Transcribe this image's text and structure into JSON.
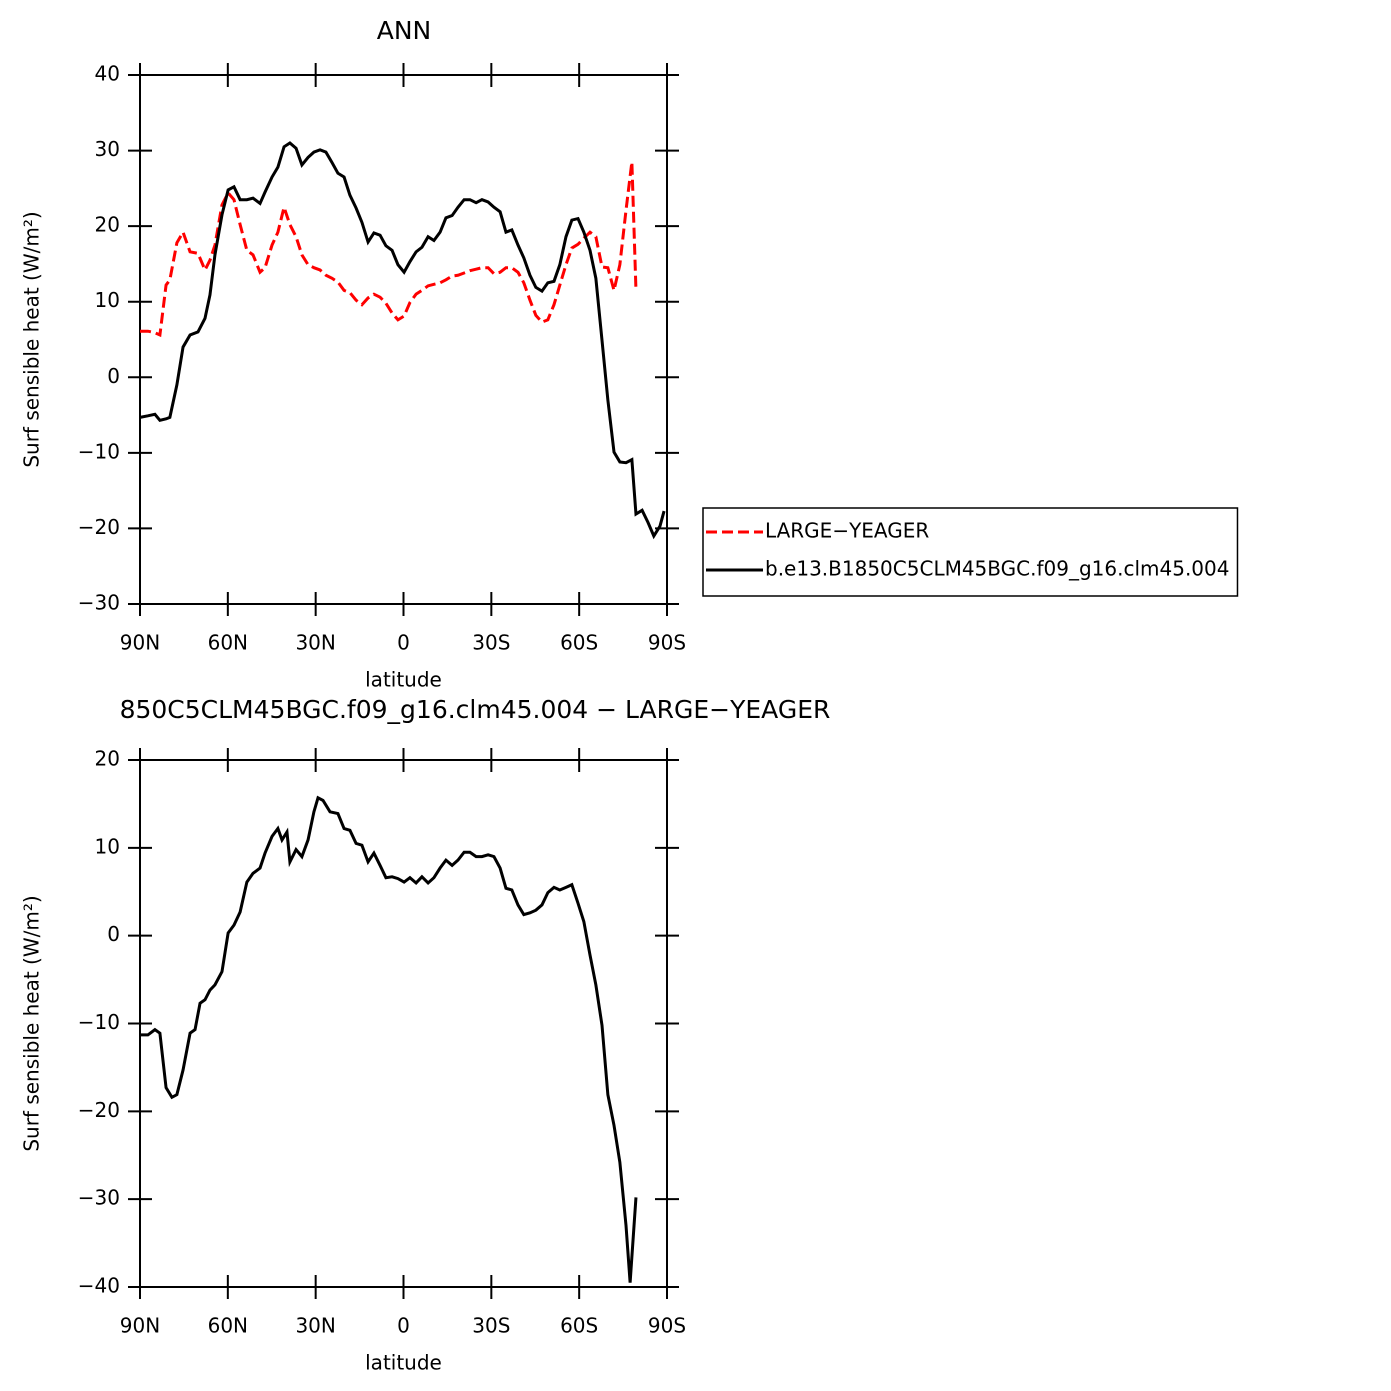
{
  "chart_data": [
    {
      "type": "line",
      "title": "ANN",
      "xlabel": "latitude",
      "ylabel": "Surf sensible heat (W/m²)",
      "x": [
        90,
        87.3,
        84.9,
        83.2,
        81.1,
        79.8,
        77.4,
        75.3,
        72.9,
        70.2,
        67.8,
        66.1,
        64.4,
        62,
        59.9,
        57.9,
        55.8,
        53.5,
        51.4,
        49,
        47.3,
        44.9,
        42.9,
        40.8,
        38.8,
        36.7,
        34.7,
        32.6,
        30.6,
        28.5,
        26.5,
        24.4,
        22.4,
        20.3,
        18.3,
        16.2,
        14.2,
        12.1,
        10.1,
        8,
        6,
        3.9,
        1.9,
        -0.2,
        -2.2,
        -4.3,
        -6.3,
        -8.4,
        -10.4,
        -12.5,
        -14.5,
        -16.6,
        -18.6,
        -20.7,
        -22.7,
        -24.8,
        -26.8,
        -28.9,
        -30.9,
        -33,
        -35,
        -37,
        -39.1,
        -41.1,
        -43.2,
        -45.2,
        -47.3,
        -49.3,
        -51.4,
        -53.4,
        -55.5,
        -57.5,
        -59.6,
        -61.6,
        -63.7,
        -65.7,
        -67.8,
        -69.8,
        -71.9,
        -73.9,
        -76,
        -78,
        -79.4,
        -81.5,
        -83.5,
        -85.5,
        -87.6,
        -89
      ],
      "series": [
        {
          "name": "LARGE−YEAGER",
          "color": "#ff0000",
          "line_style": "dashed",
          "values": [
            6.1,
            6.1,
            5.9,
            5.6,
            12.2,
            12.9,
            17.8,
            19.2,
            16.6,
            16.4,
            14.2,
            15.5,
            17.5,
            22.8,
            24.4,
            23.5,
            20.2,
            16.8,
            16.2,
            13.9,
            14.5,
            17.5,
            19.2,
            22.5,
            20.2,
            18.6,
            16.2,
            14.9,
            14.5,
            14.2,
            13.5,
            13.1,
            12.6,
            11.5,
            11.2,
            10.2,
            9.6,
            10.5,
            11,
            10.6,
            9.8,
            8.5,
            7.6,
            8.1,
            9.9,
            11,
            11.5,
            12.1,
            12.3,
            12.5,
            12.9,
            13.4,
            13.5,
            13.8,
            14.1,
            14.3,
            14.5,
            14.5,
            13.7,
            13.9,
            14.5,
            14.5,
            13.9,
            12.5,
            10.2,
            8.2,
            7.3,
            7.6,
            9.6,
            12.2,
            14.9,
            17.1,
            17.6,
            18.4,
            19.2,
            18.6,
            14.6,
            14.5,
            11.5,
            14.9,
            22.1,
            28.5,
            11.5,
            null,
            null,
            null,
            null,
            null
          ]
        },
        {
          "name": "b.e13.B1850C5CLM45BGC.f09_g16.clm45.004",
          "color": "#000000",
          "line_style": "solid",
          "values": [
            -5.3,
            -5.1,
            -4.9,
            -5.7,
            -5.5,
            -5.3,
            -1,
            4,
            5.6,
            6,
            7.8,
            10.9,
            16.2,
            21.5,
            24.8,
            25.2,
            23.5,
            23.5,
            23.7,
            23,
            24.5,
            26.5,
            27.8,
            30.5,
            31,
            30.3,
            28.1,
            29.1,
            29.8,
            30.1,
            29.8,
            28.4,
            27,
            26.5,
            24.1,
            22.4,
            20.5,
            17.9,
            19.1,
            18.8,
            17.4,
            16.8,
            14.9,
            13.9,
            15.3,
            16.6,
            17.2,
            18.6,
            18.1,
            19.2,
            21.1,
            21.4,
            22.5,
            23.5,
            23.5,
            23.1,
            23.5,
            23.2,
            22.5,
            21.9,
            19.2,
            19.5,
            17.5,
            15.8,
            13.5,
            11.9,
            11.4,
            12.5,
            12.7,
            14.9,
            18.6,
            20.8,
            21,
            19.2,
            16.8,
            13.1,
            4.9,
            -3,
            -9.9,
            -11.2,
            -11.3,
            -10.9,
            -18.1,
            -17.6,
            -19.2,
            -21,
            -19.7,
            -17.7
          ]
        }
      ],
      "xlim": [
        90,
        -90
      ],
      "xticks": [
        {
          "value": 90,
          "label": "90N"
        },
        {
          "value": 60,
          "label": "60N"
        },
        {
          "value": 30,
          "label": "30N"
        },
        0,
        {
          "value": -30,
          "label": "30S"
        },
        {
          "value": -60,
          "label": "60S"
        },
        {
          "value": -90,
          "label": "90S"
        }
      ],
      "ylim": [
        -30,
        40
      ],
      "yticks": [
        40,
        30,
        20,
        10,
        0,
        {
          "value": -10,
          "label": "−10"
        },
        {
          "value": -20,
          "label": "−20"
        },
        {
          "value": -30,
          "label": "−30"
        }
      ],
      "legend": "right"
    },
    {
      "type": "line",
      "title": "850C5CLM45BGC.f09_g16.clm45.004 − LARGE−YEAGER",
      "xlabel": "latitude",
      "ylabel": "Surf sensible heat (W/m²)",
      "x": [
        90,
        87.3,
        84.9,
        83.2,
        81.1,
        79.1,
        77.4,
        75.3,
        72.9,
        71.2,
        69.5,
        67.8,
        66.1,
        64.4,
        62,
        59.9,
        57.9,
        55.8,
        53.5,
        51.4,
        49,
        47.3,
        44.9,
        42.9,
        41.5,
        39.8,
        38.8,
        36.7,
        34.7,
        32.6,
        30.6,
        29.2,
        27.5,
        25.1,
        22.4,
        20.3,
        18.3,
        16.2,
        14.2,
        12.1,
        10.1,
        8,
        6,
        3.9,
        1.9,
        -0.2,
        -2.2,
        -4.3,
        -6.3,
        -8.4,
        -10.4,
        -12.5,
        -14.5,
        -16.6,
        -18.6,
        -20.7,
        -22.7,
        -24.8,
        -26.8,
        -28.9,
        -30.9,
        -33,
        -35,
        -37,
        -39.1,
        -41.1,
        -43.2,
        -45.2,
        -47.3,
        -49.3,
        -51.4,
        -53.4,
        -55.5,
        -57.5,
        -59.6,
        -61.6,
        -63.7,
        -65.7,
        -67.8,
        -69.8,
        -71.9,
        -73.9,
        -76,
        -77.4,
        -79.4
      ],
      "series": [
        {
          "color": "#000000",
          "line_style": "solid",
          "values": [
            -11.3,
            -11.3,
            -10.7,
            -11.1,
            -17.3,
            -18.4,
            -18.1,
            -15.3,
            -11.1,
            -10.7,
            -7.7,
            -7.3,
            -6.2,
            -5.6,
            -4.1,
            0.3,
            1.2,
            2.7,
            6.1,
            7.1,
            7.7,
            9.4,
            11.3,
            12.2,
            10.9,
            11.8,
            8.4,
            9.8,
            9,
            10.9,
            14.1,
            15.7,
            15.4,
            14.1,
            13.9,
            12.2,
            12,
            10.5,
            10.3,
            8.4,
            9.4,
            8,
            6.6,
            6.7,
            6.5,
            6.1,
            6.6,
            6,
            6.7,
            6,
            6.6,
            7.7,
            8.6,
            8,
            8.6,
            9.5,
            9.5,
            9,
            9,
            9.2,
            9,
            7.7,
            5.4,
            5.2,
            3.5,
            2.4,
            2.6,
            2.9,
            3.5,
            4.9,
            5.5,
            5.2,
            5.5,
            5.8,
            3.7,
            1.6,
            -2.2,
            -5.6,
            -10.2,
            -18.1,
            -21.6,
            -25.8,
            -33,
            -39.5,
            -29.8
          ]
        }
      ],
      "xlim": [
        90,
        -90
      ],
      "xticks": [
        {
          "value": 90,
          "label": "90N"
        },
        {
          "value": 60,
          "label": "60N"
        },
        {
          "value": 30,
          "label": "30N"
        },
        0,
        {
          "value": -30,
          "label": "30S"
        },
        {
          "value": -60,
          "label": "60S"
        },
        {
          "value": -90,
          "label": "90S"
        }
      ],
      "ylim": [
        -40,
        20
      ],
      "yticks": [
        20,
        10,
        0,
        {
          "value": -10,
          "label": "−10"
        },
        {
          "value": -20,
          "label": "−20"
        },
        {
          "value": -30,
          "label": "−30"
        },
        {
          "value": -40,
          "label": "−40"
        }
      ]
    }
  ]
}
